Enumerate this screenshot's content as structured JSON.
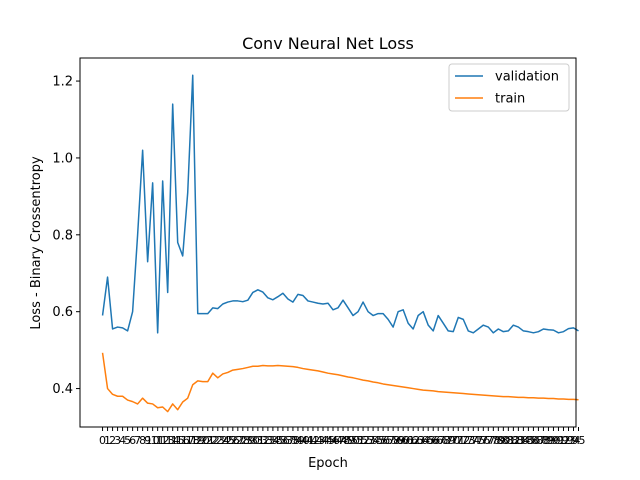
{
  "chart_data": {
    "type": "line",
    "title": "Conv Neural Net Loss",
    "xlabel": "Epoch",
    "ylabel": "Loss - Binary Crossentropy",
    "xlim": [
      -4.5,
      94.5
    ],
    "ylim": [
      0.3,
      1.26
    ],
    "yticks": [
      0.4,
      0.6,
      0.8,
      1.0,
      1.2
    ],
    "grid": false,
    "legend_position": "top-right",
    "x_start": 0,
    "x_step": 1,
    "series": [
      {
        "name": "validation",
        "color": "#1f77b4",
        "values": [
          0.59,
          0.69,
          0.555,
          0.56,
          0.558,
          0.55,
          0.6,
          0.8,
          1.02,
          0.73,
          0.935,
          0.545,
          0.94,
          0.65,
          1.14,
          0.78,
          0.745,
          0.91,
          1.215,
          0.595,
          0.595,
          0.595,
          0.61,
          0.608,
          0.62,
          0.625,
          0.628,
          0.628,
          0.626,
          0.63,
          0.65,
          0.657,
          0.651,
          0.636,
          0.631,
          0.639,
          0.648,
          0.633,
          0.625,
          0.645,
          0.642,
          0.628,
          0.625,
          0.622,
          0.62,
          0.622,
          0.605,
          0.61,
          0.63,
          0.61,
          0.59,
          0.6,
          0.625,
          0.6,
          0.59,
          0.595,
          0.595,
          0.58,
          0.56,
          0.6,
          0.605,
          0.57,
          0.555,
          0.59,
          0.6,
          0.565,
          0.55,
          0.59,
          0.57,
          0.55,
          0.548,
          0.585,
          0.58,
          0.55,
          0.545,
          0.555,
          0.565,
          0.56,
          0.545,
          0.555,
          0.548,
          0.55,
          0.565,
          0.56,
          0.55,
          0.548,
          0.545,
          0.548,
          0.555,
          0.553,
          0.552,
          0.545,
          0.548,
          0.556,
          0.558,
          0.55
        ]
      },
      {
        "name": "train",
        "color": "#ff7f0e",
        "values": [
          0.493,
          0.4,
          0.385,
          0.38,
          0.38,
          0.37,
          0.366,
          0.36,
          0.375,
          0.362,
          0.36,
          0.35,
          0.352,
          0.34,
          0.36,
          0.345,
          0.365,
          0.375,
          0.41,
          0.42,
          0.418,
          0.418,
          0.44,
          0.428,
          0.438,
          0.442,
          0.448,
          0.45,
          0.452,
          0.455,
          0.458,
          0.458,
          0.46,
          0.459,
          0.459,
          0.46,
          0.459,
          0.458,
          0.457,
          0.455,
          0.452,
          0.45,
          0.448,
          0.446,
          0.443,
          0.44,
          0.438,
          0.436,
          0.433,
          0.43,
          0.428,
          0.425,
          0.422,
          0.42,
          0.417,
          0.415,
          0.412,
          0.41,
          0.408,
          0.406,
          0.404,
          0.402,
          0.4,
          0.398,
          0.396,
          0.395,
          0.394,
          0.392,
          0.391,
          0.39,
          0.389,
          0.388,
          0.387,
          0.386,
          0.385,
          0.384,
          0.383,
          0.382,
          0.381,
          0.38,
          0.379,
          0.379,
          0.378,
          0.377,
          0.377,
          0.376,
          0.376,
          0.375,
          0.375,
          0.374,
          0.374,
          0.373,
          0.373,
          0.372,
          0.372,
          0.371
        ]
      }
    ]
  }
}
